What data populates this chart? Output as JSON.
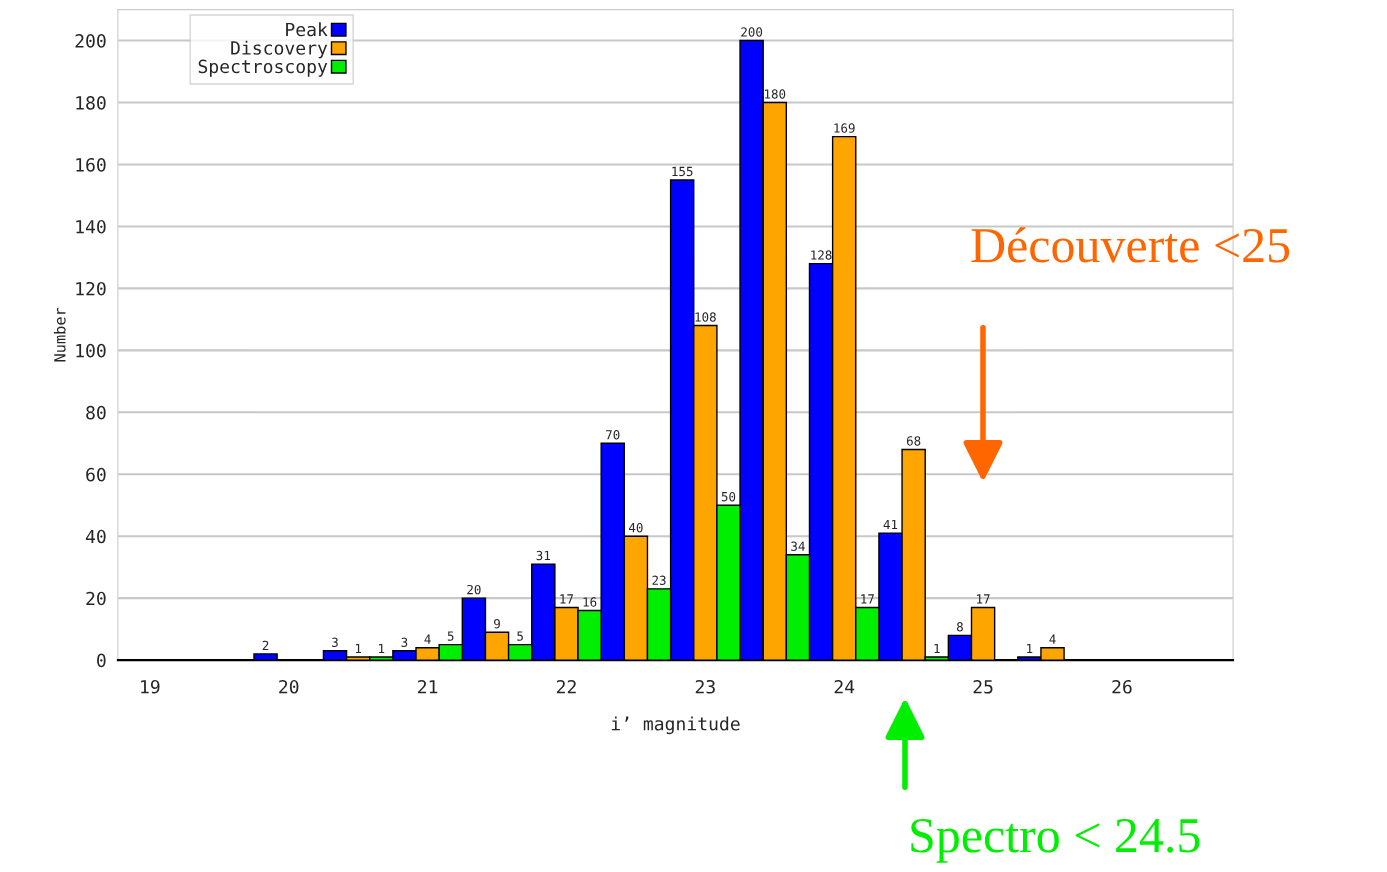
{
  "chart_data": {
    "type": "bar",
    "xlabel": "i’ magnitude",
    "ylabel": "Number",
    "x": [
      20,
      20.5,
      21,
      21.5,
      22,
      22.5,
      23,
      23.5,
      24,
      24.5,
      25,
      25.5
    ],
    "series": [
      {
        "name": "Peak",
        "color": "#0000ff",
        "values": [
          2,
          3,
          3,
          20,
          31,
          70,
          155,
          200,
          128,
          41,
          8,
          1
        ]
      },
      {
        "name": "Discovery",
        "color": "#ffa500",
        "values": [
          null,
          1,
          4,
          9,
          17,
          40,
          108,
          180,
          169,
          68,
          17,
          4
        ]
      },
      {
        "name": "Spectroscopy",
        "color": "#00ee00",
        "values": [
          null,
          1,
          5,
          5,
          16,
          23,
          50,
          34,
          17,
          1,
          null,
          null
        ]
      }
    ],
    "xlim": [
      18.77,
      26.8
    ],
    "ylim": [
      0,
      210
    ],
    "xticks": [
      19,
      20,
      21,
      22,
      23,
      24,
      25,
      26
    ],
    "yticks": [
      0,
      20,
      40,
      60,
      80,
      100,
      120,
      140,
      160,
      180,
      200
    ],
    "grid": "y",
    "legend": "top left",
    "data_labels": true,
    "annotations": [
      "Découverte <25",
      "Spectro < 24.5"
    ]
  }
}
